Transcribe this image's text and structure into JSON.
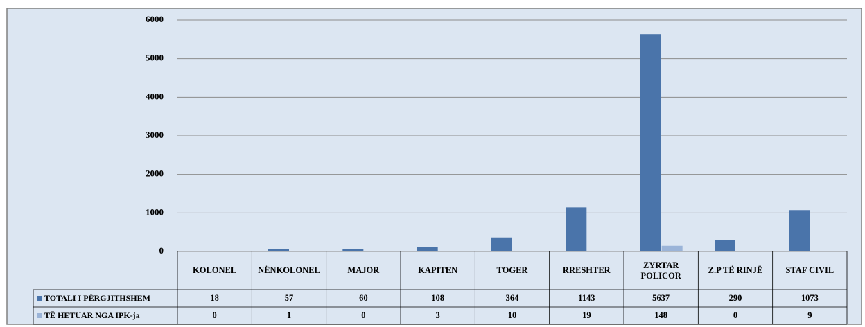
{
  "chart_data": {
    "type": "bar",
    "categories": [
      "KOLONEL",
      "NËNKOLONEL",
      "MAJOR",
      "KAPITEN",
      "TOGER",
      "RRESHTER",
      "ZYRTAR POLICOR",
      "Z.P TË RINJË",
      "STAF CIVIL"
    ],
    "series": [
      {
        "name": "TOTALI I PËRGJITHSHEM",
        "color": "#4a74aa",
        "values": [
          18,
          57,
          60,
          108,
          364,
          1143,
          5637,
          290,
          1073
        ]
      },
      {
        "name": "TË HETUAR NGA IPK-ja",
        "color": "#9bb4d8",
        "values": [
          0,
          1,
          0,
          3,
          10,
          19,
          148,
          0,
          9
        ]
      }
    ],
    "ylim": [
      0,
      6000
    ],
    "yticks": [
      0,
      1000,
      2000,
      3000,
      4000,
      5000,
      6000
    ],
    "grid": true
  }
}
